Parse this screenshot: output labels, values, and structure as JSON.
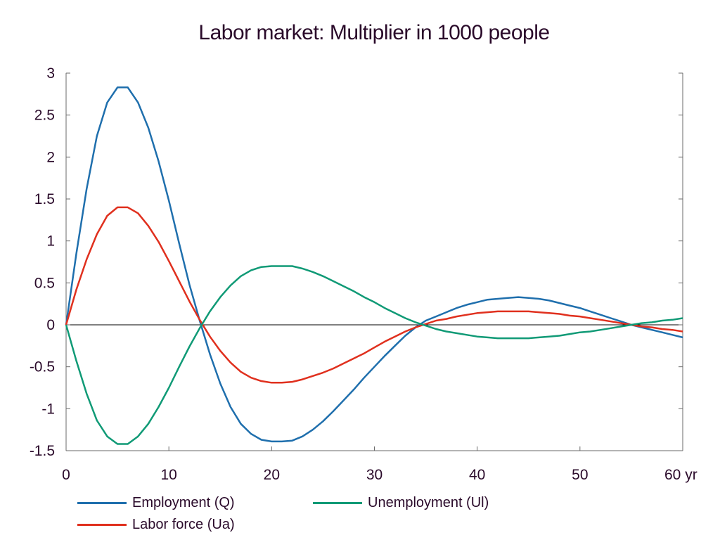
{
  "chart_data": {
    "type": "line",
    "title": "Labor market: Multiplier in 1000 people",
    "xlabel": "",
    "ylabel": "",
    "xlim": [
      0,
      60
    ],
    "ylim": [
      -1.5,
      3
    ],
    "x_ticks": [
      0,
      10,
      20,
      30,
      40,
      50,
      60
    ],
    "x_tick_labels": [
      "0",
      "10",
      "20",
      "30",
      "40",
      "50",
      "60 yr"
    ],
    "y_ticks": [
      3,
      2.5,
      2,
      1.5,
      1,
      0.5,
      0,
      -0.5,
      -1,
      -1.5
    ],
    "y_tick_labels": [
      "3",
      "2.5",
      "2",
      "1.5",
      "1",
      "0.5",
      "0",
      "-0.5",
      "-1",
      "-1.5"
    ],
    "grid": false,
    "legend_position": "bottom",
    "series": [
      {
        "name": "Employment (Q)",
        "color": "#1f6fad",
        "x": [
          0,
          1,
          2,
          3,
          4,
          5,
          6,
          7,
          8,
          9,
          10,
          11,
          12,
          13,
          14,
          15,
          16,
          17,
          18,
          19,
          20,
          21,
          22,
          23,
          24,
          25,
          26,
          27,
          28,
          29,
          30,
          31,
          32,
          33,
          34,
          35,
          36,
          37,
          38,
          39,
          40,
          41,
          42,
          43,
          44,
          45,
          46,
          47,
          48,
          49,
          50,
          51,
          52,
          53,
          54,
          55,
          56,
          57,
          58,
          59,
          60
        ],
        "y": [
          0,
          0.85,
          1.62,
          2.25,
          2.65,
          2.83,
          2.83,
          2.65,
          2.35,
          1.95,
          1.48,
          0.97,
          0.48,
          0.05,
          -0.35,
          -0.7,
          -0.98,
          -1.18,
          -1.3,
          -1.37,
          -1.39,
          -1.39,
          -1.38,
          -1.33,
          -1.25,
          -1.15,
          -1.03,
          -0.9,
          -0.77,
          -0.63,
          -0.5,
          -0.37,
          -0.25,
          -0.13,
          -0.03,
          0.05,
          0.1,
          0.15,
          0.2,
          0.24,
          0.27,
          0.3,
          0.31,
          0.32,
          0.33,
          0.32,
          0.31,
          0.29,
          0.26,
          0.23,
          0.2,
          0.16,
          0.12,
          0.08,
          0.04,
          0.0,
          -0.03,
          -0.06,
          -0.09,
          -0.12,
          -0.15
        ]
      },
      {
        "name": "Labor force (Ua)",
        "color": "#e0301e",
        "x": [
          0,
          1,
          2,
          3,
          4,
          5,
          6,
          7,
          8,
          9,
          10,
          11,
          12,
          13,
          14,
          15,
          16,
          17,
          18,
          19,
          20,
          21,
          22,
          23,
          24,
          25,
          26,
          27,
          28,
          29,
          30,
          31,
          32,
          33,
          34,
          35,
          36,
          37,
          38,
          39,
          40,
          41,
          42,
          43,
          44,
          45,
          46,
          47,
          48,
          49,
          50,
          51,
          52,
          53,
          54,
          55,
          56,
          57,
          58,
          59,
          60
        ],
        "y": [
          0,
          0.42,
          0.78,
          1.08,
          1.3,
          1.4,
          1.4,
          1.33,
          1.18,
          0.99,
          0.76,
          0.52,
          0.28,
          0.06,
          -0.14,
          -0.31,
          -0.45,
          -0.56,
          -0.63,
          -0.67,
          -0.69,
          -0.69,
          -0.68,
          -0.65,
          -0.61,
          -0.57,
          -0.52,
          -0.46,
          -0.4,
          -0.34,
          -0.27,
          -0.2,
          -0.14,
          -0.08,
          -0.03,
          0.01,
          0.05,
          0.07,
          0.1,
          0.12,
          0.14,
          0.15,
          0.16,
          0.16,
          0.16,
          0.16,
          0.15,
          0.14,
          0.13,
          0.11,
          0.1,
          0.08,
          0.06,
          0.04,
          0.02,
          0.0,
          -0.02,
          -0.03,
          -0.05,
          -0.06,
          -0.08
        ]
      },
      {
        "name": "Unemployment (Ul)",
        "color": "#109a76",
        "x": [
          0,
          1,
          2,
          3,
          4,
          5,
          6,
          7,
          8,
          9,
          10,
          11,
          12,
          13,
          14,
          15,
          16,
          17,
          18,
          19,
          20,
          21,
          22,
          23,
          24,
          25,
          26,
          27,
          28,
          29,
          30,
          31,
          32,
          33,
          34,
          35,
          36,
          37,
          38,
          39,
          40,
          41,
          42,
          43,
          44,
          45,
          46,
          47,
          48,
          49,
          50,
          51,
          52,
          53,
          54,
          55,
          56,
          57,
          58,
          59,
          60
        ],
        "y": [
          0,
          -0.43,
          -0.82,
          -1.14,
          -1.33,
          -1.42,
          -1.42,
          -1.33,
          -1.18,
          -0.98,
          -0.75,
          -0.5,
          -0.26,
          -0.04,
          0.16,
          0.33,
          0.47,
          0.58,
          0.65,
          0.69,
          0.7,
          0.7,
          0.7,
          0.67,
          0.63,
          0.58,
          0.52,
          0.46,
          0.4,
          0.33,
          0.27,
          0.2,
          0.14,
          0.08,
          0.03,
          -0.01,
          -0.05,
          -0.08,
          -0.1,
          -0.12,
          -0.14,
          -0.15,
          -0.16,
          -0.16,
          -0.16,
          -0.16,
          -0.15,
          -0.14,
          -0.13,
          -0.11,
          -0.09,
          -0.08,
          -0.06,
          -0.04,
          -0.02,
          0.0,
          0.02,
          0.03,
          0.05,
          0.06,
          0.08
        ]
      }
    ]
  }
}
